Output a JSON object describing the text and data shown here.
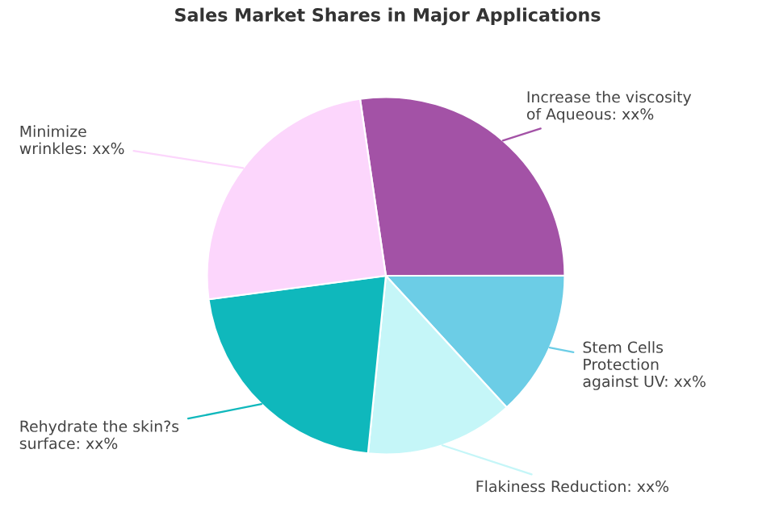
{
  "chart_data": {
    "type": "pie",
    "title": "Sales Market Shares in Major Applications",
    "categories": [
      "Increase the viscosity\nof Aqueous: xx%",
      "Stem Cells\nProtection\nagainst UV: xx%",
      "Flakiness Reduction: xx%",
      "Rehydrate the skin?s\nsurface: xx%",
      "Minimize\nwrinkles: xx%"
    ],
    "values": [
      27.3,
      13.2,
      13.4,
      21.3,
      24.8
    ],
    "colors": [
      "#a352a6",
      "#6ccde6",
      "#c5f6f8",
      "#0fb8bc",
      "#fcd6fc"
    ],
    "legend": false
  }
}
